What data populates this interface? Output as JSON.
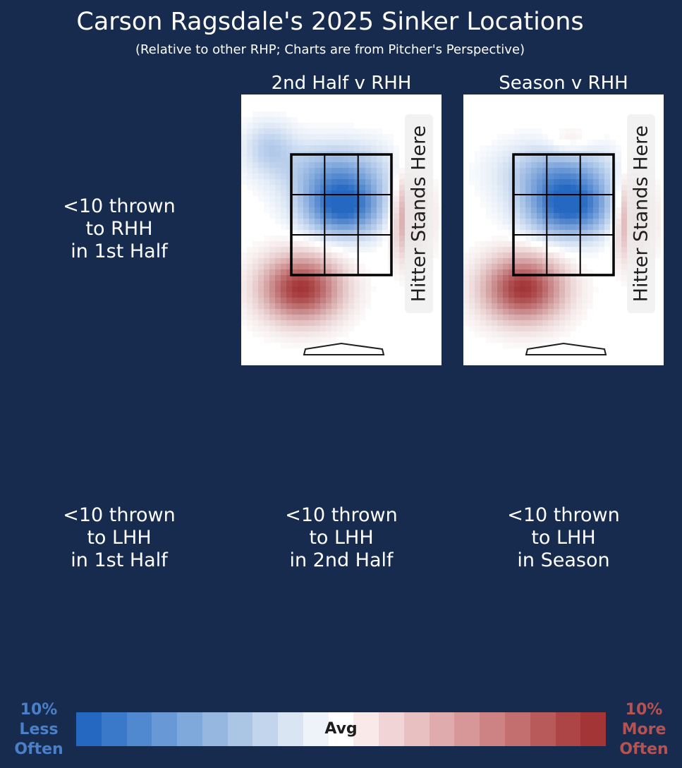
{
  "header": {
    "title": "Carson Ragsdale's 2025 Sinker Locations",
    "subtitle": "(Relative to other RHP; Charts are from Pitcher's Perspective)"
  },
  "panels": {
    "top_2nd_half": {
      "title": "2nd Half v RHH",
      "hitter_label": "Hitter Stands Here"
    },
    "top_season": {
      "title": "Season v RHH",
      "hitter_label": "Hitter Stands Here"
    }
  },
  "messages": {
    "rhh_1st_half": "<10 thrown\nto RHH\nin 1st Half",
    "lhh_1st_half": "<10 thrown\nto LHH\nin 1st Half",
    "lhh_2nd_half": "<10 thrown\nto LHH\nin 2nd Half",
    "lhh_season": "<10 thrown\nto LHH\nin Season"
  },
  "colorbar": {
    "left_label": "10%\nLess\nOften",
    "center_label": "Avg",
    "right_label": "10%\nMore\nOften",
    "colors": [
      "#2568c2",
      "#3a78c9",
      "#5089d0",
      "#6899d6",
      "#7fa8db",
      "#95b7e0",
      "#abc6e5",
      "#c2d5ec",
      "#d9e5f3",
      "#eef3f9",
      "#ffffff",
      "#f9e9e9",
      "#f1d4d5",
      "#e8c0c1",
      "#e0abad",
      "#d79798",
      "#cd8283",
      "#c36e6f",
      "#b8595a",
      "#ad4547",
      "#a33537"
    ],
    "left_color": "#4a7fc9",
    "right_color": "#b55252"
  },
  "chart_data": [
    {
      "type": "heatmap",
      "title": "2nd Half v RHH",
      "scale": "relative frequency vs other RHP, -10% (less often, blue) to +10% (more often, red)",
      "blobs": [
        {
          "region": "middle / middle-right of zone",
          "value": -10
        },
        {
          "region": "upper zone",
          "value": -5
        },
        {
          "region": "low and away, below zone (left)",
          "value": 10
        },
        {
          "region": "outside right edge of zone",
          "value": 6
        },
        {
          "region": "upper-left outside zone",
          "value": -3
        }
      ]
    },
    {
      "type": "heatmap",
      "title": "Season v RHH",
      "scale": "relative frequency vs other RHP, -10% (less often, blue) to +10% (more often, red)",
      "blobs": [
        {
          "region": "middle / middle-right of zone",
          "value": -10
        },
        {
          "region": "upper zone",
          "value": -5
        },
        {
          "region": "top middle above zone",
          "value": 2
        },
        {
          "region": "low and away, below zone (left)",
          "value": 10
        },
        {
          "region": "outside right edge of zone",
          "value": 6
        }
      ]
    }
  ]
}
